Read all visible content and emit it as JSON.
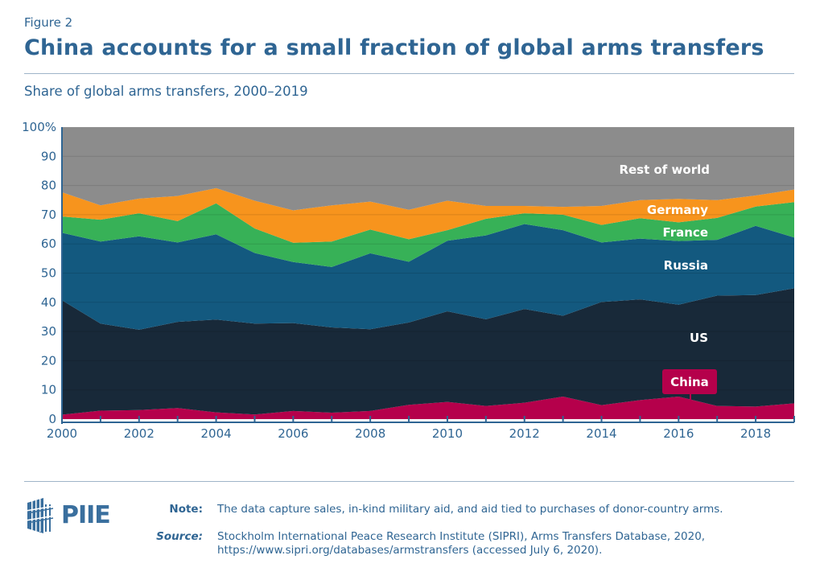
{
  "figure_label": "Figure 2",
  "title": "China accounts for a small fraction of global arms transfers",
  "subtitle": "Share of global arms transfers, 2000–2019",
  "chart_data": {
    "type": "area",
    "stacked": true,
    "x": [
      2000,
      2001,
      2002,
      2003,
      2004,
      2005,
      2006,
      2007,
      2008,
      2009,
      2010,
      2011,
      2012,
      2013,
      2014,
      2015,
      2016,
      2017,
      2018,
      2019
    ],
    "series": [
      {
        "name": "China",
        "color": "#b5004b",
        "values": [
          1.5,
          2.9,
          3.1,
          3.8,
          2.3,
          1.6,
          2.8,
          2.2,
          2.8,
          4.9,
          5.9,
          4.5,
          5.6,
          7.7,
          4.8,
          6.5,
          7.7,
          4.5,
          4.3,
          5.4
        ]
      },
      {
        "name": "US",
        "color": "#182939",
        "values": [
          39.2,
          29.8,
          27.5,
          29.5,
          31.8,
          31.1,
          30.1,
          29.2,
          28.0,
          28.2,
          31.0,
          29.7,
          32.1,
          27.7,
          35.3,
          34.5,
          31.5,
          37.8,
          38.2,
          39.4
        ]
      },
      {
        "name": "Russia",
        "color": "#13597f",
        "values": [
          23.1,
          28.1,
          32.0,
          27.2,
          29.2,
          24.2,
          20.9,
          20.7,
          26.0,
          20.8,
          24.2,
          28.7,
          29.1,
          29.3,
          20.4,
          20.8,
          21.8,
          19.1,
          23.7,
          17.4
        ]
      },
      {
        "name": "France",
        "color": "#37b157",
        "values": [
          5.6,
          7.5,
          7.9,
          7.3,
          10.6,
          8.4,
          6.6,
          8.7,
          8.1,
          7.7,
          3.6,
          5.7,
          3.7,
          5.3,
          6.0,
          7.0,
          6.4,
          7.5,
          6.6,
          12.1
        ]
      },
      {
        "name": "Germany",
        "color": "#f7941d",
        "values": [
          8.3,
          4.9,
          5.0,
          8.6,
          5.2,
          9.5,
          11.1,
          12.4,
          9.6,
          10.1,
          10.1,
          4.4,
          2.5,
          2.7,
          6.5,
          6.2,
          8.0,
          6.1,
          3.8,
          4.3
        ]
      },
      {
        "name": "Rest of world",
        "color": "#8c8c8c",
        "values": [
          22.3,
          26.8,
          24.5,
          23.6,
          20.9,
          25.2,
          28.5,
          26.8,
          25.5,
          28.3,
          25.2,
          27.0,
          27.0,
          27.3,
          27.0,
          25.0,
          24.6,
          25.0,
          23.4,
          21.4
        ]
      }
    ],
    "ylim": [
      0,
      100
    ],
    "y_ticks": [
      "0",
      "10",
      "20",
      "30",
      "40",
      "50",
      "60",
      "70",
      "80",
      "90",
      "100%"
    ],
    "x_tick_labels": [
      "2000",
      "2002",
      "2004",
      "2006",
      "2008",
      "2010",
      "2012",
      "2014",
      "2016",
      "2018"
    ],
    "grid": true,
    "legend": "inline labels",
    "xlabel": "",
    "ylabel": ""
  },
  "footer": {
    "logo": "PIIE",
    "note_label": "Note:",
    "note_text": "The data capture sales, in-kind military aid, and aid tied to purchases of donor-country arms.",
    "source_label": "Source:",
    "source_line1": "Stockholm International Peace Research Institute (SIPRI), Arms Transfers Database, 2020,",
    "source_line2": "https://www.sipri.org/databases/armstransfers (accessed July 6, 2020)."
  }
}
